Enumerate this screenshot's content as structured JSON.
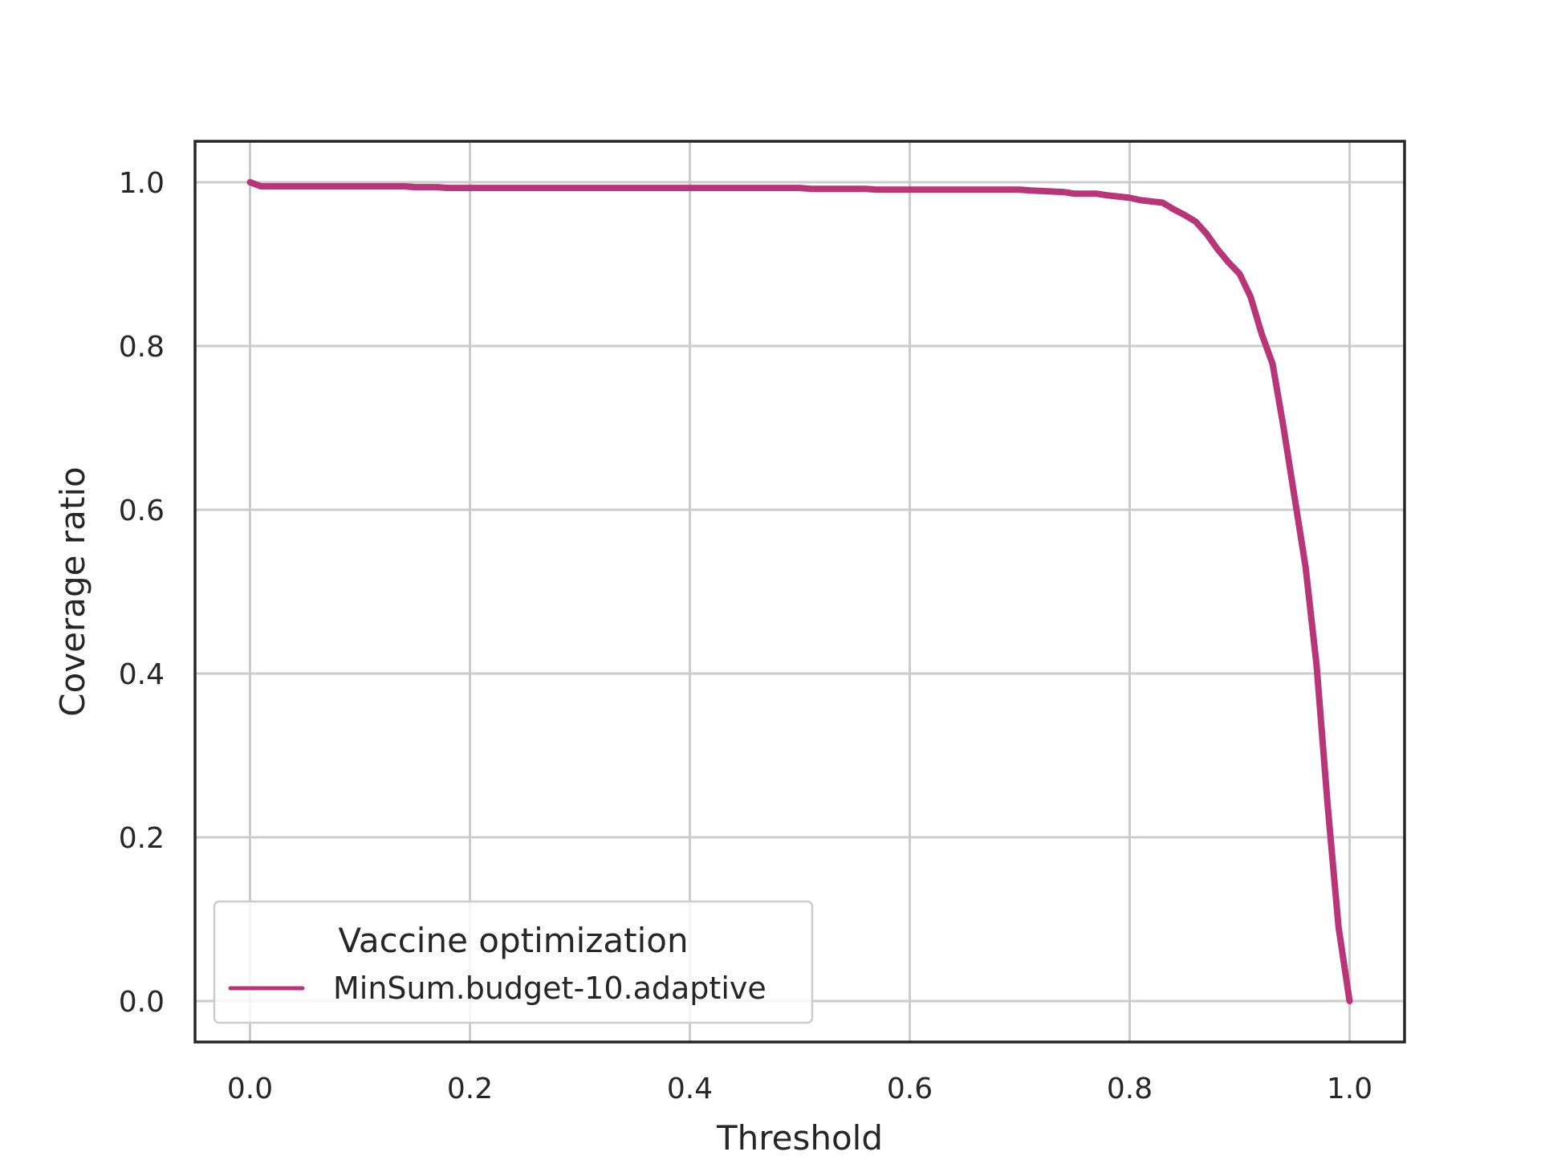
{
  "chart_data": {
    "type": "line",
    "title": "",
    "xlabel": "Threshold",
    "ylabel": "Coverage ratio",
    "xlim": [
      -0.05,
      1.05
    ],
    "ylim": [
      -0.05,
      1.05
    ],
    "xticks": [
      0.0,
      0.2,
      0.4,
      0.6,
      0.8,
      1.0
    ],
    "yticks": [
      0.0,
      0.2,
      0.4,
      0.6,
      0.8,
      1.0
    ],
    "xtick_labels": [
      "0.0",
      "0.2",
      "0.4",
      "0.6",
      "0.8",
      "1.0"
    ],
    "ytick_labels": [
      "0.0",
      "0.2",
      "0.4",
      "0.6",
      "0.8",
      "1.0"
    ],
    "grid": true,
    "legend": {
      "title": "Vaccine optimization",
      "placement": "lower-left"
    },
    "series": [
      {
        "name": "MinSum.budget-10.adaptive",
        "color": "#b83577",
        "x": [
          0.0,
          0.01,
          0.05,
          0.1,
          0.14,
          0.15,
          0.17,
          0.18,
          0.2,
          0.3,
          0.4,
          0.5,
          0.51,
          0.56,
          0.57,
          0.6,
          0.7,
          0.71,
          0.74,
          0.75,
          0.77,
          0.78,
          0.8,
          0.81,
          0.83,
          0.84,
          0.85,
          0.86,
          0.87,
          0.88,
          0.89,
          0.9,
          0.91,
          0.92,
          0.93,
          0.94,
          0.95,
          0.96,
          0.97,
          0.98,
          0.99,
          1.0
        ],
        "y": [
          1.0,
          0.995,
          0.995,
          0.995,
          0.995,
          0.994,
          0.994,
          0.993,
          0.993,
          0.993,
          0.993,
          0.993,
          0.992,
          0.992,
          0.991,
          0.991,
          0.991,
          0.99,
          0.988,
          0.986,
          0.986,
          0.984,
          0.981,
          0.978,
          0.975,
          0.967,
          0.96,
          0.952,
          0.937,
          0.918,
          0.902,
          0.888,
          0.86,
          0.815,
          0.778,
          0.7,
          0.615,
          0.53,
          0.41,
          0.24,
          0.09,
          0.0
        ]
      }
    ]
  }
}
